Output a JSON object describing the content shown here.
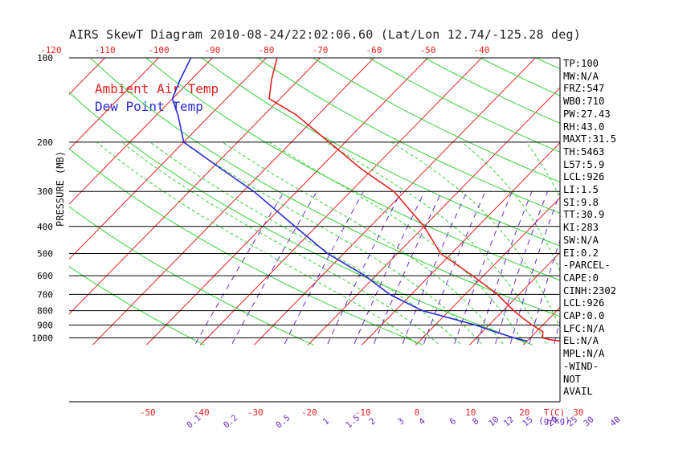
{
  "chart_data": {
    "type": "line",
    "title": "AIRS SkewT Diagram 2010-08-24/22:02:06.60 (Lat/Lon 12.74/-125.28 deg)",
    "ylabel": "PRESSURE (MB)",
    "xlabel_bottom_unit": "T(C)",
    "mixing_ratio_unit": "(g/kg)",
    "pressure_ticks": [
      100,
      200,
      300,
      400,
      500,
      600,
      700,
      800,
      900,
      1000
    ],
    "pressure_range": [
      100,
      1050
    ],
    "top_temp_ticks": [
      -120,
      -110,
      -100,
      -90,
      -80,
      -70,
      -60,
      -50,
      -40
    ],
    "bottom_temp_ticks": [
      -50,
      -40,
      -30,
      -20,
      -10,
      0,
      10,
      20,
      30
    ],
    "mixing_ratio_ticks": [
      "0.1",
      "0.2",
      "0.5",
      "1",
      "1.5",
      "2",
      "3",
      "4",
      "6",
      "8",
      "10",
      "12",
      "15",
      "20",
      "25",
      "30",
      "40"
    ],
    "series": [
      {
        "name": "Ambient Air Temp",
        "color": "#e52121",
        "pressure": [
          1026,
          1015,
          1000,
          950,
          900,
          850,
          800,
          700,
          600,
          500,
          400,
          300,
          250,
          200,
          160,
          140,
          120,
          100
        ],
        "temperature": [
          26,
          24,
          22.3,
          21.2,
          18,
          15,
          12,
          6,
          -2,
          -12,
          -20,
          -32,
          -42,
          -53,
          -64,
          -72,
          -75,
          -78
        ]
      },
      {
        "name": "Dew Point Temp",
        "color": "#2b2bd6",
        "pressure": [
          1026,
          1015,
          1000,
          950,
          900,
          850,
          800,
          700,
          600,
          500,
          400,
          300,
          250,
          200,
          160,
          140,
          120,
          100
        ],
        "temperature": [
          20,
          18.5,
          17,
          12.2,
          7.5,
          1.5,
          -5,
          -14,
          -22,
          -33,
          -44,
          -58,
          -68,
          -80,
          -86,
          -90,
          -92,
          -94
        ]
      }
    ]
  },
  "legend": {
    "air": "Ambient Air Temp",
    "dew": "Dew Point Temp"
  },
  "indices": [
    "TP:100",
    "MW:N/A",
    "FRZ:547",
    "WB0:710",
    "PW:27.43",
    "RH:43.0",
    "MAXT:31.5",
    "TH:5463",
    "L57:5.9",
    "LCL:926",
    "LI:1.5",
    "SI:9.8",
    "TT:30.9",
    "KI:283",
    "SW:N/A",
    "EI:0.2",
    "-PARCEL-",
    "CAPE:0",
    "CINH:2302",
    "LCL:926",
    "CAP:0.0",
    "LFC:N/A",
    "EL:N/A",
    "MPL:N/A",
    "-WIND-",
    "NOT",
    "AVAIL"
  ],
  "colors": {
    "isotherm": "#e52121",
    "dry_adiabat": "#33d233",
    "moist_adiabat": "#33d233",
    "mixing_ratio": "#6a2bc7",
    "tick_labels_temp": "#e52121",
    "tick_labels_mixing": "#6a2bc7",
    "air_temp": "#e52121",
    "dew_point": "#2b2bd6"
  }
}
